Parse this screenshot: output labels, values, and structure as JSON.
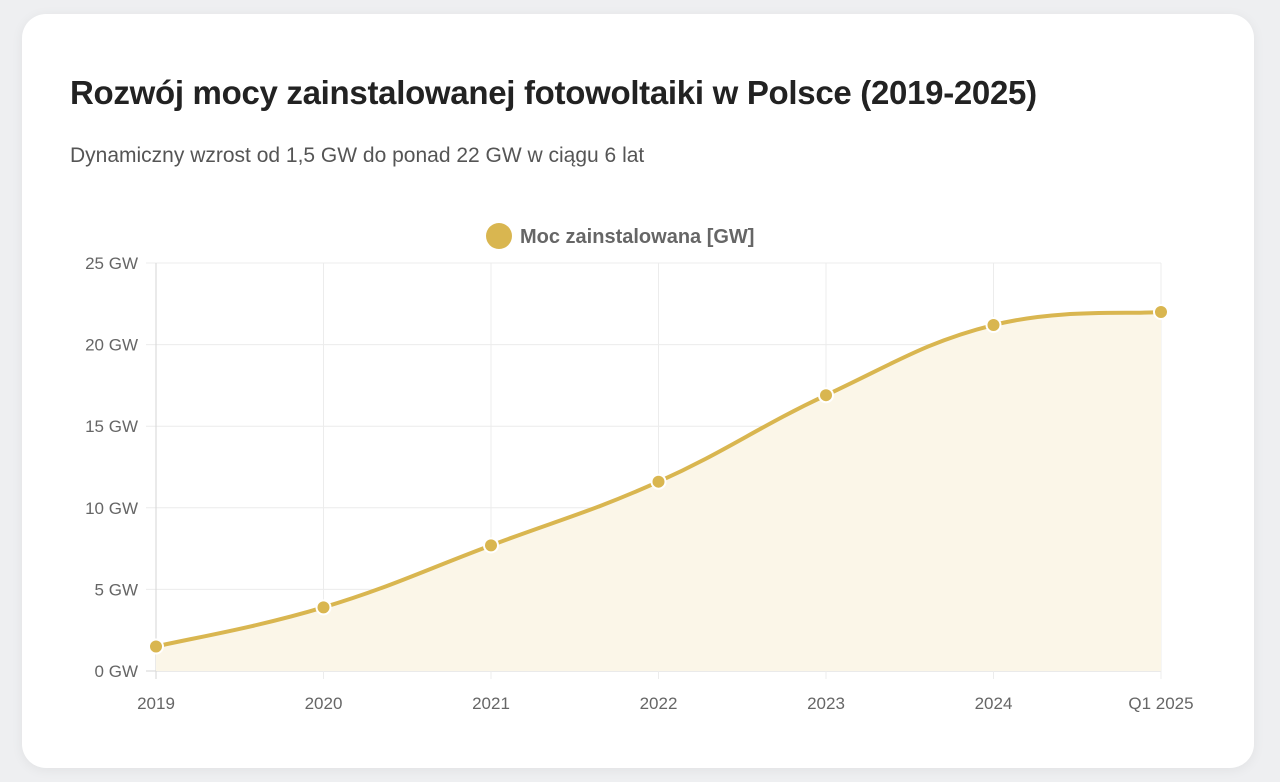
{
  "chart_data": {
    "type": "line",
    "title": "Rozwój mocy zainstalowanej fotowoltaiki w Polsce (2019-2025)",
    "subtitle": "Dynamiczny wzrost od 1,5 GW do ponad 22 GW w ciągu 6 lat",
    "categories": [
      "2019",
      "2020",
      "2021",
      "2022",
      "2023",
      "2024",
      "Q1 2025"
    ],
    "series": [
      {
        "name": "Moc zainstalowana [GW]",
        "values": [
          1.5,
          3.9,
          7.7,
          11.6,
          16.9,
          21.2,
          22.0
        ],
        "color": "#d9b650",
        "fill": "#fbf6e8"
      }
    ],
    "ylim": [
      0,
      25
    ],
    "yticks": [
      0,
      5,
      10,
      15,
      20,
      25
    ],
    "ytick_suffix": " GW",
    "grid": true,
    "legend": "top-center",
    "smooth": true,
    "filled": true
  }
}
